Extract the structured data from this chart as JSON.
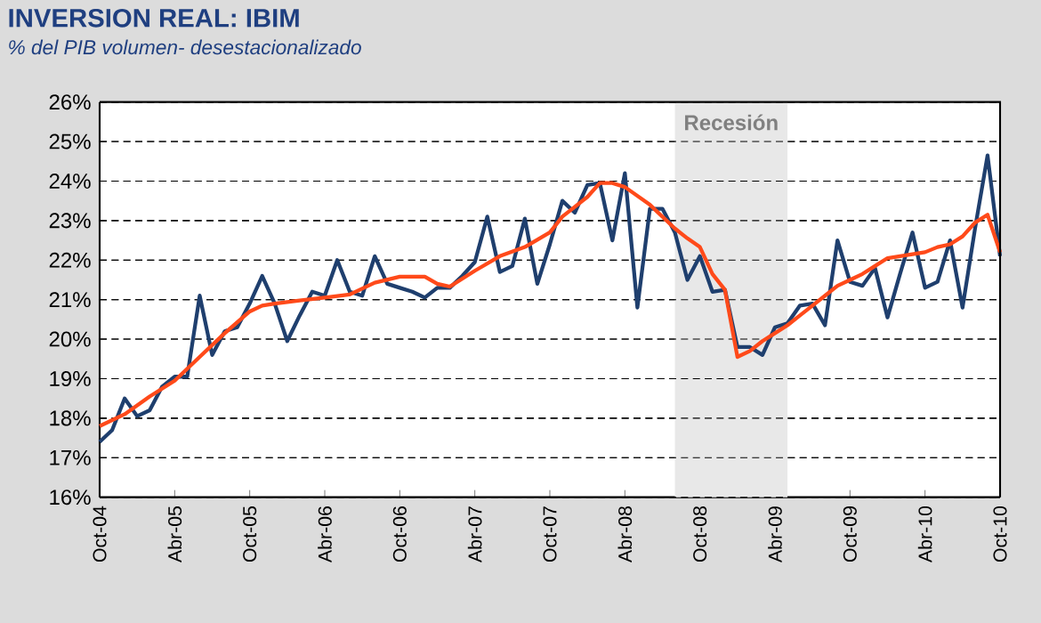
{
  "chart_data": {
    "type": "line",
    "title": "INVERSION REAL: IBIM",
    "subtitle": "% del PIB volumen- desestacionalizado",
    "x": [
      "2004-10",
      "2004-11",
      "2004-12",
      "2005-01",
      "2005-02",
      "2005-03",
      "2005-04",
      "2005-05",
      "2005-06",
      "2005-07",
      "2005-08",
      "2005-09",
      "2005-10",
      "2005-11",
      "2005-12",
      "2006-01",
      "2006-02",
      "2006-03",
      "2006-04",
      "2006-05",
      "2006-06",
      "2006-07",
      "2006-08",
      "2006-09",
      "2006-10",
      "2006-11",
      "2006-12",
      "2007-01",
      "2007-02",
      "2007-03",
      "2007-04",
      "2007-05",
      "2007-06",
      "2007-07",
      "2007-08",
      "2007-09",
      "2007-10",
      "2007-11",
      "2007-12",
      "2008-01",
      "2008-02",
      "2008-03",
      "2008-04",
      "2008-05",
      "2008-06",
      "2008-07",
      "2008-08",
      "2008-09",
      "2008-10",
      "2008-11",
      "2008-12",
      "2009-01",
      "2009-02",
      "2009-03",
      "2009-04",
      "2009-05",
      "2009-06",
      "2009-07",
      "2009-08",
      "2009-09",
      "2009-10",
      "2009-11",
      "2009-12",
      "2010-01",
      "2010-02",
      "2010-03",
      "2010-04",
      "2010-05",
      "2010-06",
      "2010-07",
      "2010-08",
      "2010-09",
      "2010-10"
    ],
    "series": [
      {
        "color": "#1f3f6e",
        "values": [
          17.4,
          17.7,
          18.5,
          18.05,
          18.2,
          18.8,
          19.05,
          19.05,
          21.1,
          19.6,
          20.2,
          20.3,
          20.9,
          21.6,
          20.9,
          19.95,
          20.6,
          21.2,
          21.1,
          22.0,
          21.2,
          21.1,
          22.1,
          21.4,
          21.3,
          21.2,
          21.05,
          21.3,
          21.3,
          21.6,
          21.95,
          23.1,
          21.7,
          21.85,
          23.05,
          21.4,
          22.4,
          23.5,
          23.2,
          23.9,
          23.95,
          22.5,
          24.2,
          20.8,
          23.3,
          23.3,
          22.7,
          21.5,
          22.1,
          21.2,
          21.25,
          19.8,
          19.8,
          19.6,
          20.3,
          20.4,
          20.85,
          20.9,
          20.35,
          22.5,
          21.45,
          21.35,
          21.8,
          20.55,
          21.65,
          22.7,
          21.3,
          21.45,
          22.5,
          20.8,
          22.8,
          24.65,
          22.1
        ]
      },
      {
        "color": "#ff4a1a",
        "x": [
          "2004-10",
          "2004-12",
          "2005-02",
          "2005-04",
          "2005-06",
          "2005-08",
          "2005-10",
          "2005-11",
          "2005-12",
          "2006-02",
          "2006-04",
          "2006-06",
          "2006-08",
          "2006-10",
          "2006-12",
          "2007-01",
          "2007-02",
          "2007-04",
          "2007-06",
          "2007-08",
          "2007-10",
          "2007-11",
          "2007-12",
          "2008-01",
          "2008-02",
          "2008-03",
          "2008-04",
          "2008-06",
          "2008-08",
          "2008-09",
          "2008-10",
          "2008-11",
          "2008-12",
          "2009-01",
          "2009-02",
          "2009-03",
          "2009-04",
          "2009-05",
          "2009-06",
          "2009-07",
          "2009-08",
          "2009-09",
          "2009-10",
          "2009-11",
          "2009-12",
          "2010-01",
          "2010-02",
          "2010-03",
          "2010-04",
          "2010-05",
          "2010-06",
          "2010-07",
          "2010-08",
          "2010-09",
          "2010-10"
        ],
        "values": [
          17.8,
          18.1,
          18.55,
          18.95,
          19.55,
          20.15,
          20.7,
          20.85,
          20.9,
          20.98,
          21.05,
          21.13,
          21.43,
          21.58,
          21.58,
          21.4,
          21.33,
          21.73,
          22.1,
          22.33,
          22.7,
          23.1,
          23.35,
          23.6,
          23.95,
          23.95,
          23.85,
          23.4,
          22.8,
          22.55,
          22.33,
          21.65,
          21.25,
          19.55,
          19.7,
          19.95,
          20.15,
          20.35,
          20.6,
          20.85,
          21.1,
          21.35,
          21.5,
          21.65,
          21.85,
          22.05,
          22.1,
          22.15,
          22.2,
          22.33,
          22.4,
          22.6,
          22.95,
          23.15,
          22.2
        ]
      }
    ],
    "xlim": [
      "2004-10",
      "2010-10"
    ],
    "xticks": [
      {
        "value": "2004-10",
        "label": "Oct-04"
      },
      {
        "value": "2005-04",
        "label": "Abr-05"
      },
      {
        "value": "2005-10",
        "label": "Oct-05"
      },
      {
        "value": "2006-04",
        "label": "Abr-06"
      },
      {
        "value": "2006-10",
        "label": "Oct-06"
      },
      {
        "value": "2007-04",
        "label": "Abr-07"
      },
      {
        "value": "2007-10",
        "label": "Oct-07"
      },
      {
        "value": "2008-04",
        "label": "Abr-08"
      },
      {
        "value": "2008-10",
        "label": "Oct-08"
      },
      {
        "value": "2009-04",
        "label": "Abr-09"
      },
      {
        "value": "2009-10",
        "label": "Oct-09"
      },
      {
        "value": "2010-04",
        "label": "Abr-10"
      },
      {
        "value": "2010-10",
        "label": "Oct-10"
      }
    ],
    "ylim": [
      16,
      26
    ],
    "yticks": [
      {
        "value": 16,
        "label": "16%"
      },
      {
        "value": 17,
        "label": "17%"
      },
      {
        "value": 18,
        "label": "18%"
      },
      {
        "value": 19,
        "label": "19%"
      },
      {
        "value": 20,
        "label": "20%"
      },
      {
        "value": 21,
        "label": "21%"
      },
      {
        "value": 22,
        "label": "22%"
      },
      {
        "value": 23,
        "label": "23%"
      },
      {
        "value": 24,
        "label": "24%"
      },
      {
        "value": 25,
        "label": "25%"
      },
      {
        "value": 26,
        "label": "26%"
      }
    ],
    "grid": "y",
    "legend": false,
    "marker": "none",
    "line_style": "solid",
    "bands": [
      {
        "axis": "x",
        "from": "2008-08",
        "to": "2009-05",
        "label": "Recesión",
        "color": "#e8e8e8"
      }
    ]
  }
}
